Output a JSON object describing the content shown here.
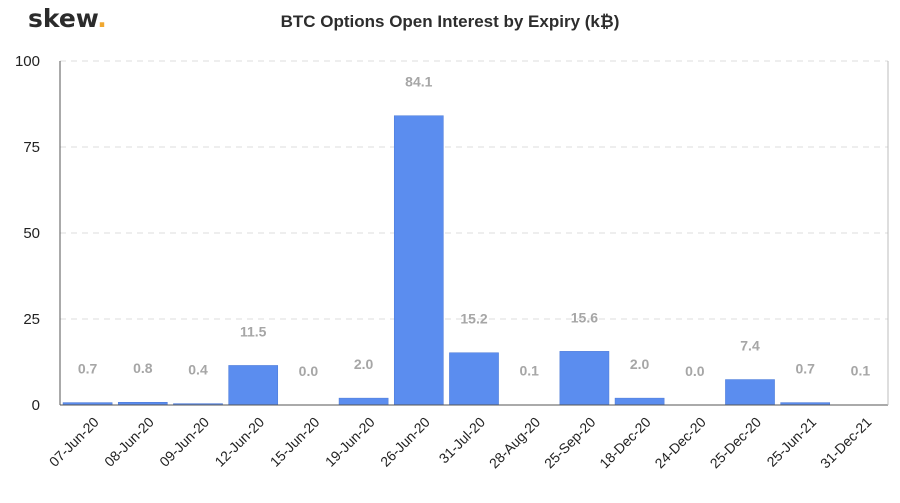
{
  "brand": {
    "name": "skew",
    "dot": "."
  },
  "chart_data": {
    "type": "bar",
    "title": "BTC Options Open Interest by Expiry (k₿)",
    "xlabel": "",
    "ylabel": "",
    "ylim": [
      0,
      100
    ],
    "yticks": [
      0,
      25,
      50,
      75,
      100
    ],
    "grid": true,
    "categories": [
      "07-Jun-20",
      "08-Jun-20",
      "09-Jun-20",
      "12-Jun-20",
      "15-Jun-20",
      "19-Jun-20",
      "26-Jun-20",
      "31-Jul-20",
      "28-Aug-20",
      "25-Sep-20",
      "18-Dec-20",
      "24-Dec-20",
      "25-Dec-20",
      "25-Jun-21",
      "31-Dec-21"
    ],
    "values": [
      0.7,
      0.8,
      0.4,
      11.5,
      0.0,
      2.0,
      84.1,
      15.2,
      0.1,
      15.6,
      2.0,
      0.0,
      7.4,
      0.7,
      0.1
    ],
    "value_labels": [
      "0.7",
      "0.8",
      "0.4",
      "11.5",
      "0.0",
      "2.0",
      "84.1",
      "15.2",
      "0.1",
      "15.6",
      "2.0",
      "0.0",
      "7.4",
      "0.7",
      "0.1"
    ],
    "colors": {
      "bar": "#5b8def",
      "bar_edge": "#4a78d6",
      "data_label": "#a6a6a6",
      "grid": "#dcdcdc",
      "axis": "#555555"
    }
  }
}
